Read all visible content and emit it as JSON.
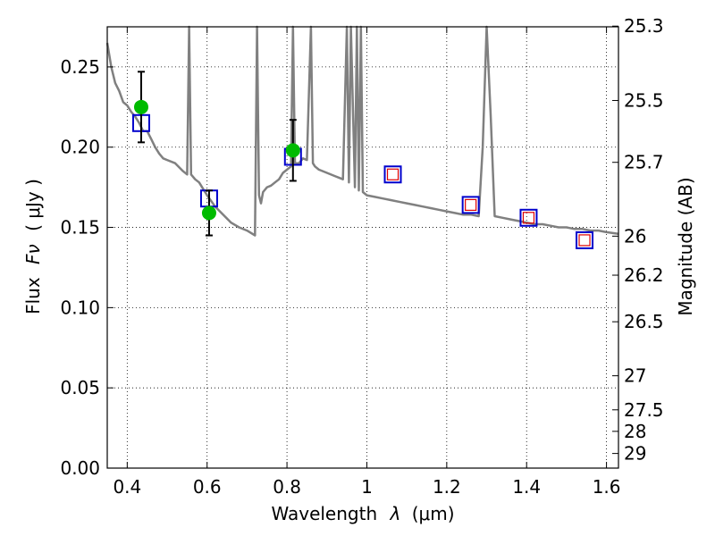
{
  "chart_data": {
    "type": "scatter",
    "title": "",
    "xlabel_main": "Wavelength",
    "xlabel_symbol": "λ",
    "xlabel_unit": "(μm)",
    "ylabel_prefix": "Flux",
    "ylabel_symbol": "Fν",
    "ylabel_unit": "( μJy )",
    "y2label": "Magnitude (AB)",
    "xlim": [
      0.35,
      1.63
    ],
    "ylim": [
      0.0,
      0.275
    ],
    "grid": true,
    "x_ticks": [
      0.4,
      0.6,
      0.8,
      1.0,
      1.2,
      1.4,
      1.6
    ],
    "x_tick_labels": [
      "0.4",
      "0.6",
      "0.8",
      "1",
      "1.2",
      "1.4",
      "1.6"
    ],
    "y_ticks": [
      0.0,
      0.05,
      0.1,
      0.15,
      0.2,
      0.25
    ],
    "y_tick_labels": [
      "0.00",
      "0.05",
      "0.10",
      "0.15",
      "0.20",
      "0.25"
    ],
    "y2_tick_labels": [
      "25.3",
      "25.5",
      "25.7",
      "26",
      "26.2",
      "26.5",
      "27",
      "27.5",
      "28",
      "29"
    ],
    "colors": {
      "model": "#808080",
      "observed": "#00bb00",
      "model_box": "#0000cc",
      "red_box": "#dd0000",
      "errorbar": "#000000"
    },
    "series": [
      {
        "kind": "model-spectrum",
        "x": [
          0.35,
          0.36,
          0.37,
          0.38,
          0.39,
          0.4,
          0.41,
          0.42,
          0.43,
          0.44,
          0.45,
          0.46,
          0.47,
          0.48,
          0.49,
          0.5,
          0.52,
          0.54,
          0.55,
          0.555,
          0.56,
          0.57,
          0.58,
          0.6,
          0.62,
          0.64,
          0.66,
          0.68,
          0.7,
          0.72,
          0.725,
          0.73,
          0.735,
          0.74,
          0.75,
          0.76,
          0.77,
          0.78,
          0.79,
          0.8,
          0.81,
          0.815,
          0.82,
          0.83,
          0.84,
          0.85,
          0.86,
          0.865,
          0.87,
          0.88,
          0.9,
          0.92,
          0.94,
          0.95,
          0.955,
          0.96,
          0.97,
          0.975,
          0.98,
          0.985,
          0.99,
          1.0,
          1.02,
          1.04,
          1.06,
          1.08,
          1.1,
          1.12,
          1.14,
          1.16,
          1.18,
          1.2,
          1.22,
          1.24,
          1.26,
          1.28,
          1.29,
          1.3,
          1.31,
          1.32,
          1.34,
          1.36,
          1.38,
          1.4,
          1.42,
          1.44,
          1.46,
          1.48,
          1.5,
          1.52,
          1.54,
          1.56,
          1.58,
          1.6,
          1.63
        ],
        "y": [
          0.265,
          0.25,
          0.24,
          0.235,
          0.228,
          0.226,
          0.222,
          0.219,
          0.215,
          0.21,
          0.21,
          0.205,
          0.2,
          0.196,
          0.193,
          0.192,
          0.19,
          0.185,
          0.183,
          0.275,
          0.183,
          0.18,
          0.178,
          0.17,
          0.163,
          0.158,
          0.153,
          0.15,
          0.148,
          0.145,
          0.275,
          0.17,
          0.165,
          0.172,
          0.175,
          0.176,
          0.178,
          0.18,
          0.184,
          0.186,
          0.188,
          0.275,
          0.19,
          0.19,
          0.193,
          0.192,
          0.275,
          0.19,
          0.188,
          0.186,
          0.184,
          0.182,
          0.18,
          0.275,
          0.178,
          0.275,
          0.175,
          0.275,
          0.173,
          0.275,
          0.172,
          0.17,
          0.169,
          0.168,
          0.167,
          0.166,
          0.165,
          0.164,
          0.163,
          0.162,
          0.161,
          0.16,
          0.159,
          0.158,
          0.158,
          0.157,
          0.2,
          0.275,
          0.22,
          0.157,
          0.156,
          0.155,
          0.154,
          0.153,
          0.152,
          0.152,
          0.151,
          0.15,
          0.15,
          0.149,
          0.149,
          0.148,
          0.148,
          0.147,
          0.146
        ]
      },
      {
        "kind": "observed",
        "x": [
          0.435,
          0.605,
          0.815
        ],
        "y": [
          0.225,
          0.159,
          0.198
        ],
        "yerr": [
          0.022,
          0.014,
          0.019
        ]
      },
      {
        "kind": "model-band",
        "x": [
          0.435,
          0.605,
          0.815,
          1.065,
          1.26,
          1.405,
          1.545
        ],
        "y": [
          0.215,
          0.168,
          0.194,
          0.183,
          0.164,
          0.156,
          0.142
        ]
      },
      {
        "kind": "band-inner",
        "x": [
          1.065,
          1.26,
          1.405,
          1.545
        ],
        "y": [
          0.183,
          0.164,
          0.156,
          0.142
        ]
      }
    ]
  }
}
